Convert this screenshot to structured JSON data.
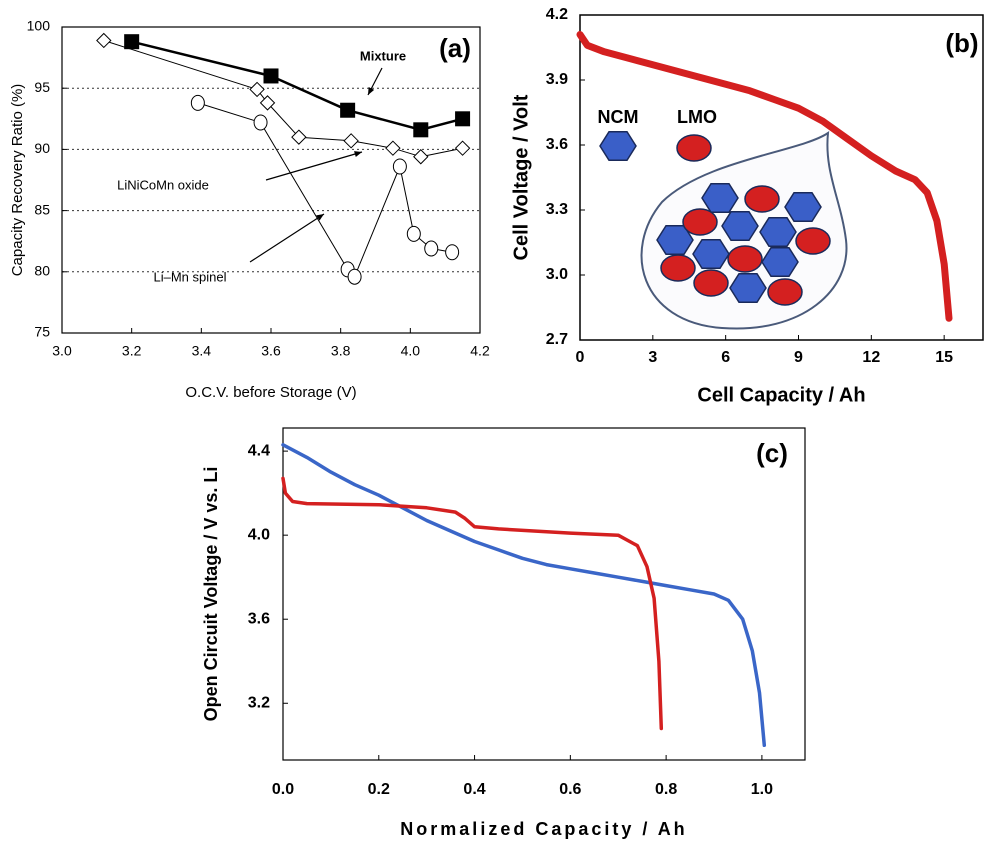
{
  "chart_data": [
    {
      "type": "line",
      "xlabel": "O.C.V. before Storage (V)",
      "ylabel": "Capacity Recovery Ratio (%)",
      "annotations": [
        "(a)"
      ],
      "xlim": [
        3.0,
        4.2
      ],
      "xticks": [
        {
          "value": 3,
          "label": "3.0"
        },
        3.2,
        3.4,
        3.6,
        3.8,
        {
          "value": 4,
          "label": "4.0"
        },
        4.2
      ],
      "ylim": [
        75,
        100
      ],
      "yticks": [
        75,
        80,
        85,
        90,
        95,
        100
      ],
      "grid": "dotted",
      "series": [
        {
          "name": "Mixture",
          "color": "#000000",
          "marker": "square",
          "x": [
            3.2,
            3.6,
            3.82,
            4.03,
            4.15
          ],
          "values": [
            98.8,
            96.0,
            93.2,
            91.6,
            92.5
          ]
        },
        {
          "name": "LiNiCoMn oxide",
          "color": "#000000",
          "marker": "diamond",
          "x": [
            3.12,
            3.56,
            3.59,
            3.68,
            3.83,
            3.95,
            4.03,
            4.15
          ],
          "values": [
            98.9,
            94.9,
            93.8,
            91.0,
            90.7,
            90.1,
            89.4,
            90.1
          ]
        },
        {
          "name": "Li–Mn spinel",
          "color": "#000000",
          "marker": "circle",
          "x": [
            3.39,
            3.57,
            3.82,
            3.84,
            3.97,
            4.01,
            4.06,
            4.12
          ],
          "values": [
            93.8,
            92.2,
            80.2,
            79.6,
            88.6,
            83.1,
            81.9,
            81.6
          ]
        }
      ]
    },
    {
      "type": "line",
      "xlabel": "Cell Capacity / Ah",
      "ylabel": "Cell Voltage / Volt",
      "annotations": [
        "(b)",
        "NCM",
        "LMO"
      ],
      "xlim": [
        0,
        16.6
      ],
      "xticks": [
        0,
        3,
        6,
        9,
        12,
        15
      ],
      "ylim": [
        2.7,
        4.2
      ],
      "yticks": [
        2.7,
        {
          "value": 3,
          "label": "3.0"
        },
        3.3,
        3.6,
        3.9,
        4.2
      ],
      "grid": false,
      "series": [
        {
          "color": "#d42020",
          "x": [
            0,
            0.3,
            1,
            2,
            3,
            4,
            5,
            6,
            7,
            8,
            9,
            10,
            11,
            12,
            13,
            13.8,
            14.3,
            14.7,
            15,
            15.2
          ],
          "values": [
            4.11,
            4.06,
            4.03,
            4.0,
            3.97,
            3.94,
            3.91,
            3.88,
            3.85,
            3.81,
            3.77,
            3.71,
            3.63,
            3.55,
            3.48,
            3.44,
            3.38,
            3.25,
            3.05,
            2.8
          ]
        }
      ]
    },
    {
      "type": "line",
      "xlabel": "Normalized Capacity / Ah",
      "ylabel": "Open Circuit Voltage / V vs. Li",
      "annotations": [
        "(c)"
      ],
      "xlim": [
        0,
        1.09
      ],
      "xticks": [
        {
          "value": 0,
          "label": "0.0"
        },
        0.2,
        0.4,
        0.6,
        0.8,
        {
          "value": 1,
          "label": "1.0"
        }
      ],
      "ylim": [
        2.93,
        4.51
      ],
      "yticks": [
        3.2,
        3.6,
        {
          "value": 4,
          "label": "4.0"
        },
        4.4
      ],
      "grid": false,
      "series": [
        {
          "color": "#3a66c8",
          "x": [
            0,
            0.05,
            0.1,
            0.15,
            0.2,
            0.25,
            0.3,
            0.35,
            0.4,
            0.45,
            0.5,
            0.55,
            0.6,
            0.65,
            0.7,
            0.75,
            0.8,
            0.85,
            0.9,
            0.93,
            0.96,
            0.98,
            0.995,
            1.005
          ],
          "values": [
            4.43,
            4.37,
            4.3,
            4.24,
            4.19,
            4.13,
            4.07,
            4.02,
            3.97,
            3.93,
            3.89,
            3.86,
            3.84,
            3.82,
            3.8,
            3.78,
            3.76,
            3.74,
            3.72,
            3.69,
            3.6,
            3.45,
            3.25,
            3.0
          ]
        },
        {
          "color": "#d42020",
          "x": [
            0,
            0.005,
            0.02,
            0.05,
            0.2,
            0.3,
            0.36,
            0.38,
            0.4,
            0.45,
            0.6,
            0.7,
            0.74,
            0.76,
            0.775,
            0.785,
            0.79
          ],
          "values": [
            4.27,
            4.2,
            4.16,
            4.15,
            4.145,
            4.13,
            4.11,
            4.08,
            4.04,
            4.03,
            4.01,
            4.0,
            3.95,
            3.85,
            3.7,
            3.4,
            3.08
          ]
        }
      ]
    }
  ]
}
